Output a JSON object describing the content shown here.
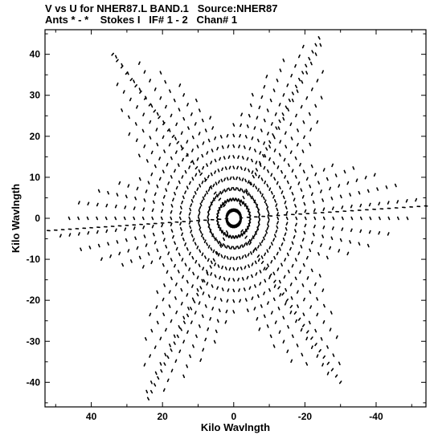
{
  "header": {
    "line1": "V vs U for NHER87.L BAND.1   Source:NHER87",
    "line2": "Ants * - *    Stokes I   IF# 1 - 2   Chan# 1"
  },
  "chart_data": {
    "type": "scatter",
    "title": "V vs U for NHER87.L BAND.1   Source:NHER87",
    "subtitle": "Ants * - *    Stokes I   IF# 1 - 2   Chan# 1",
    "xlabel": "Kilo Wavlngth",
    "ylabel": "Kilo Wavlngth",
    "xlim": [
      53,
      -54
    ],
    "ylim": [
      -46,
      46
    ],
    "x_reversed": true,
    "xticks": [
      40,
      20,
      0,
      -20,
      -40
    ],
    "yticks": [
      40,
      30,
      20,
      10,
      0,
      -10,
      -20,
      -30,
      -40
    ],
    "xtick_labels": [
      "40",
      "20",
      "0",
      "-20",
      "-40"
    ],
    "ytick_labels": [
      "40",
      "30",
      "20",
      "10",
      "0",
      "-10",
      "-20",
      "-30",
      "-40"
    ],
    "grid": false,
    "marker_color": "#000000",
    "pattern": {
      "description": "six-pointed star of uv track points (symmetric pairs)",
      "arm_angles_deg": [
        20,
        55,
        90,
        125,
        160,
        200,
        235,
        270,
        305,
        340
      ],
      "spokes": [
        {
          "angle_deg": 118,
          "tip": [
            -24,
            44
          ]
        },
        {
          "angle_deg": 152,
          "tip": [
            -54,
            3
          ]
        },
        {
          "angle_deg": 210,
          "tip": [
            -30,
            -40
          ]
        },
        {
          "angle_deg": 298,
          "tip": [
            24,
            -44
          ]
        },
        {
          "angle_deg": 332,
          "tip": [
            52,
            -3
          ]
        },
        {
          "angle_deg": 30,
          "tip": [
            34,
            40
          ]
        }
      ]
    }
  }
}
